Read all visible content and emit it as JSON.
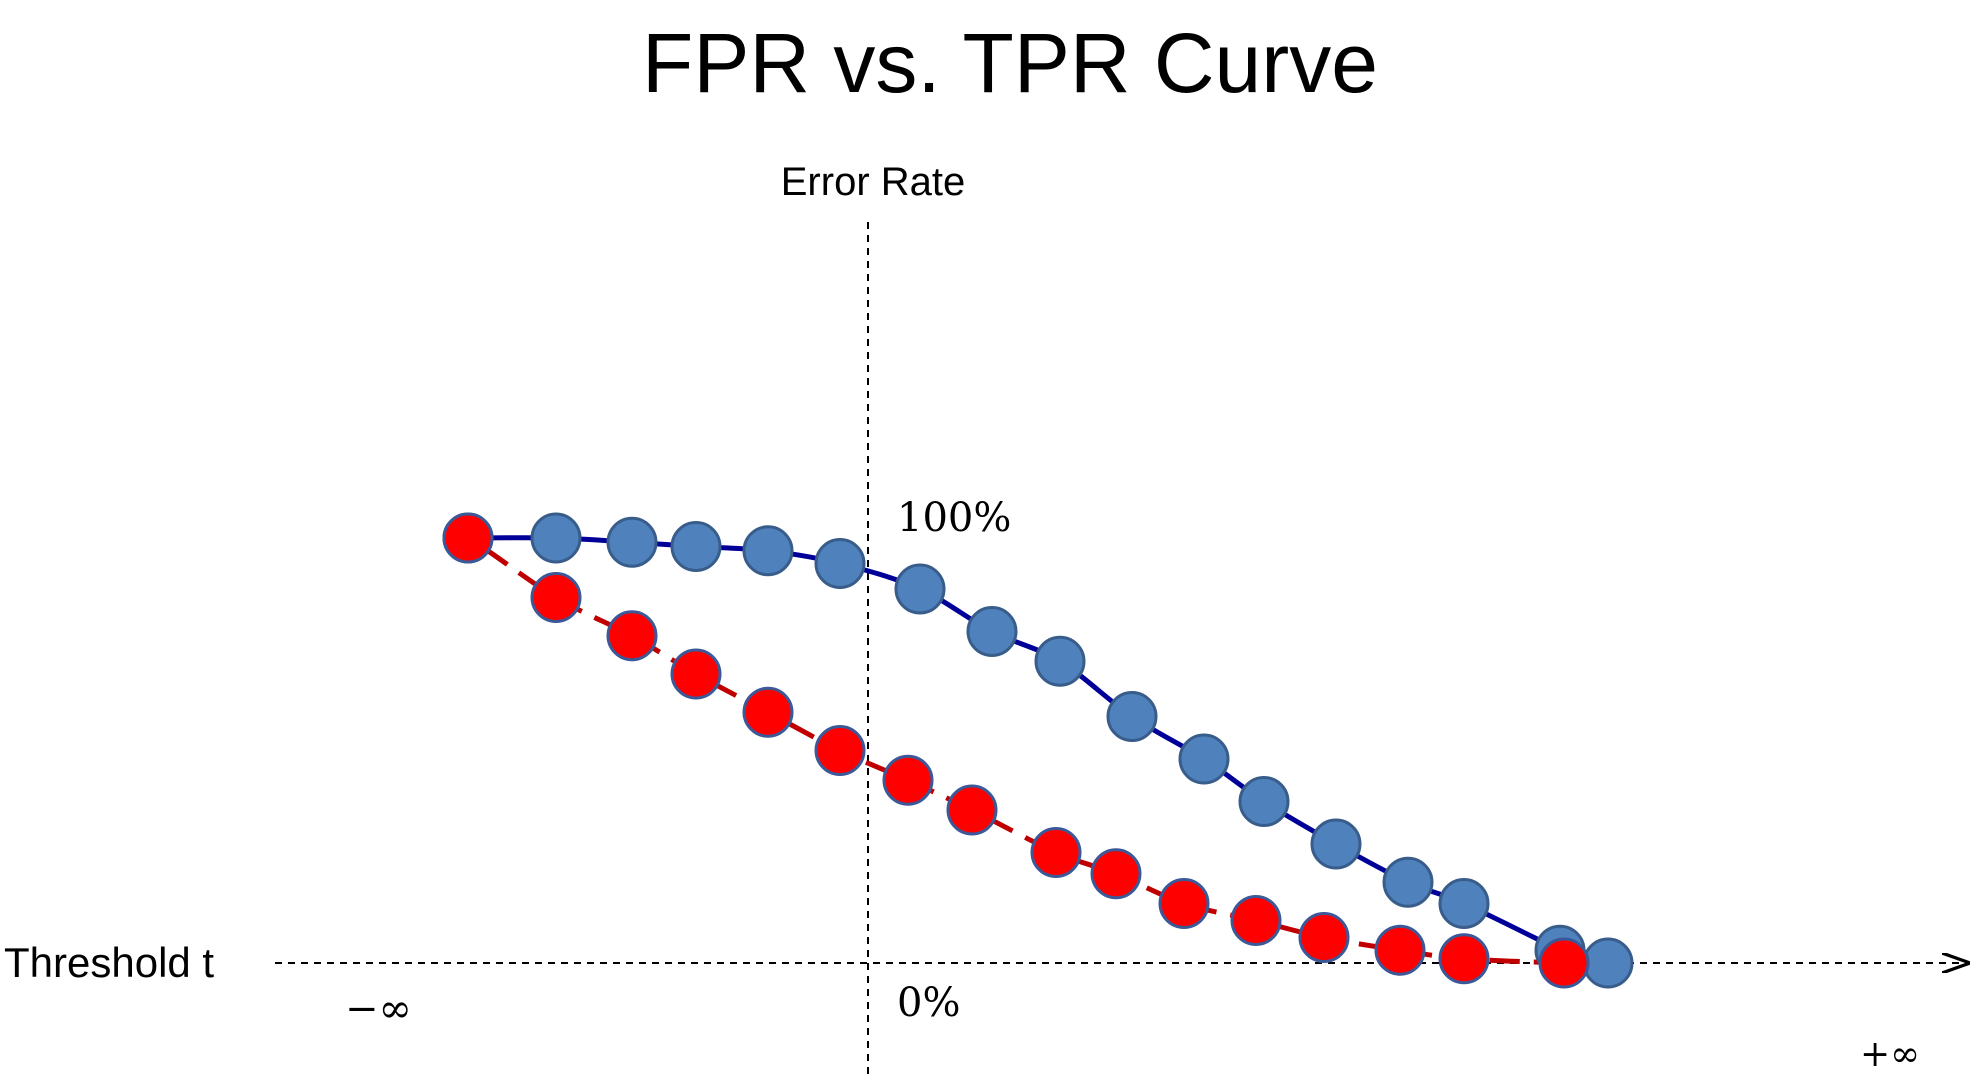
{
  "title": "FPR vs. TPR Curve",
  "y_axis_label": "Error Rate",
  "x_axis_label": "Threshold t",
  "y_tick_top": "100%",
  "y_tick_bottom": "0%",
  "x_min_label": "−∞",
  "x_max_label": "+∞",
  "colors": {
    "blue_fill": "#4f81bd",
    "blue_stroke": "#385d8a",
    "blue_line": "#000099",
    "red_fill": "#ff0000",
    "red_stroke": "#3b5998",
    "red_line": "#c00000",
    "axis": "#000000"
  },
  "chart_data": {
    "type": "line",
    "title": "FPR vs. TPR Curve",
    "xlabel": "Threshold t",
    "ylabel": "Error Rate",
    "xlim": [
      "−∞",
      "+∞"
    ],
    "ylim": [
      0,
      100
    ],
    "y_tick_labels": [
      "0%",
      "100%"
    ],
    "grid": false,
    "series": [
      {
        "color": "#4f81bd",
        "line_style": "solid",
        "x": [
          -1.0,
          -0.78,
          -0.59,
          -0.43,
          -0.25,
          -0.07,
          0.13,
          0.31,
          0.48,
          0.66,
          0.84,
          0.99,
          1.17,
          1.35,
          1.49,
          1.73,
          1.85
        ],
        "y": [
          100,
          100,
          99,
          98,
          97,
          94,
          88,
          78,
          71,
          58,
          48,
          38,
          28,
          19,
          14,
          3,
          0
        ]
      },
      {
        "color": "#ff0000",
        "line_style": "dashed",
        "x": [
          -1.0,
          -0.78,
          -0.59,
          -0.43,
          -0.25,
          -0.07,
          0.1,
          0.26,
          0.47,
          0.62,
          0.79,
          0.97,
          1.14,
          1.33,
          1.49,
          1.74
        ],
        "y": [
          100,
          86,
          77,
          68,
          59,
          50,
          43,
          36,
          26,
          21,
          14,
          10,
          6,
          3,
          1,
          0
        ]
      }
    ]
  }
}
